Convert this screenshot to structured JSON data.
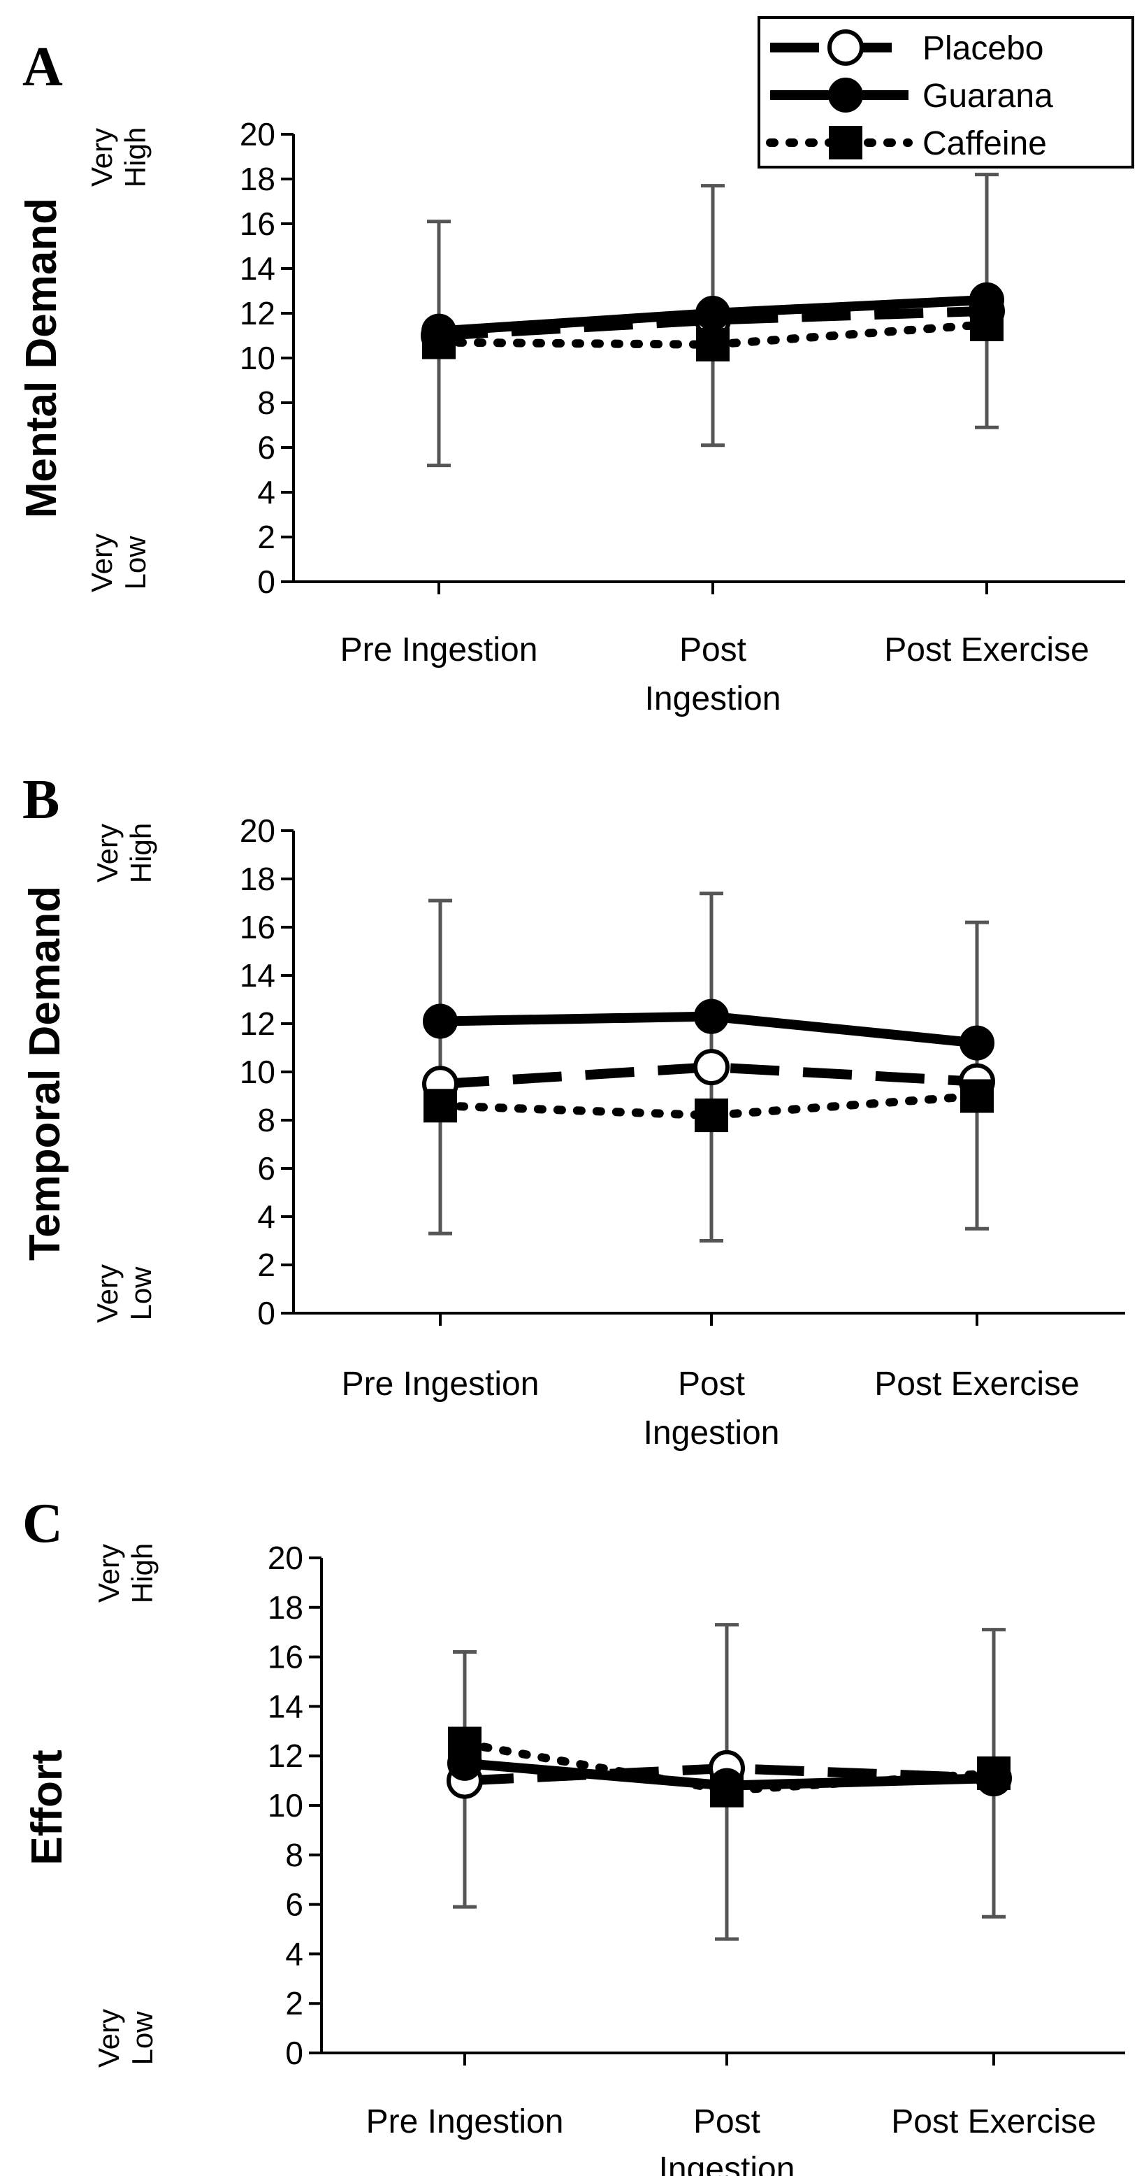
{
  "legend": {
    "entries": [
      {
        "name": "Placebo",
        "marker": "open-circle",
        "line": "dashed"
      },
      {
        "name": "Guarana",
        "marker": "filled-circle",
        "line": "solid"
      },
      {
        "name": "Caffeine",
        "marker": "filled-square",
        "line": "dotted"
      }
    ],
    "placement": "top-right"
  },
  "chart_data": [
    {
      "type": "line",
      "panel_label": "A",
      "ylabel": "Mental Demand",
      "y_anchor_high": [
        "Very",
        "High"
      ],
      "y_anchor_low": [
        "Very",
        "Low"
      ],
      "ylim": [
        0,
        20
      ],
      "yticks": [
        "0",
        "2",
        "4",
        "6",
        "8",
        "10",
        "12",
        "14",
        "16",
        "18",
        "20"
      ],
      "categories": [
        [
          "Pre Ingestion"
        ],
        [
          "Post",
          "Ingestion"
        ],
        [
          "Post Exercise"
        ]
      ],
      "series": [
        {
          "name": "Placebo",
          "values": [
            11.0,
            11.7,
            12.1
          ],
          "err_low": [
            5.2,
            6.1,
            6.9
          ],
          "err_high": [
            16.1,
            17.7,
            18.2
          ]
        },
        {
          "name": "Guarana",
          "values": [
            11.2,
            12.0,
            12.6
          ]
        },
        {
          "name": "Caffeine",
          "values": [
            10.7,
            10.6,
            11.5
          ]
        }
      ]
    },
    {
      "type": "line",
      "panel_label": "B",
      "ylabel": "Temporal Demand",
      "y_anchor_high": [
        "Very",
        "High"
      ],
      "y_anchor_low": [
        "Very",
        "Low"
      ],
      "ylim": [
        0,
        20
      ],
      "yticks": [
        "0",
        "2",
        "4",
        "6",
        "8",
        "10",
        "12",
        "14",
        "16",
        "18",
        "20"
      ],
      "categories": [
        [
          "Pre Ingestion"
        ],
        [
          "Post",
          "Ingestion"
        ],
        [
          "Post Exercise"
        ]
      ],
      "series": [
        {
          "name": "Placebo",
          "values": [
            9.5,
            10.2,
            9.6
          ],
          "err_low": [
            3.3,
            3.0,
            3.5
          ],
          "err_high": [
            17.1,
            17.4,
            16.2
          ]
        },
        {
          "name": "Guarana",
          "values": [
            12.1,
            12.3,
            11.2
          ]
        },
        {
          "name": "Caffeine",
          "values": [
            8.6,
            8.2,
            9.0
          ]
        }
      ]
    },
    {
      "type": "line",
      "panel_label": "C",
      "ylabel": "Effort",
      "y_anchor_high": [
        "Very",
        "High"
      ],
      "y_anchor_low": [
        "Very",
        "Low"
      ],
      "ylim": [
        0,
        20
      ],
      "yticks": [
        "0",
        "2",
        "4",
        "6",
        "8",
        "10",
        "12",
        "14",
        "16",
        "18",
        "20"
      ],
      "categories": [
        [
          "Pre Ingestion"
        ],
        [
          "Post",
          "Ingestion"
        ],
        [
          "Post Exercise"
        ]
      ],
      "series": [
        {
          "name": "Placebo",
          "values": [
            11.0,
            11.5,
            11.1
          ],
          "err_low": [
            5.9,
            4.6,
            5.5
          ],
          "err_high": [
            16.2,
            17.3,
            17.1
          ]
        },
        {
          "name": "Guarana",
          "values": [
            11.7,
            10.8,
            11.1
          ]
        },
        {
          "name": "Caffeine",
          "values": [
            12.5,
            10.6,
            11.3
          ]
        }
      ]
    }
  ]
}
